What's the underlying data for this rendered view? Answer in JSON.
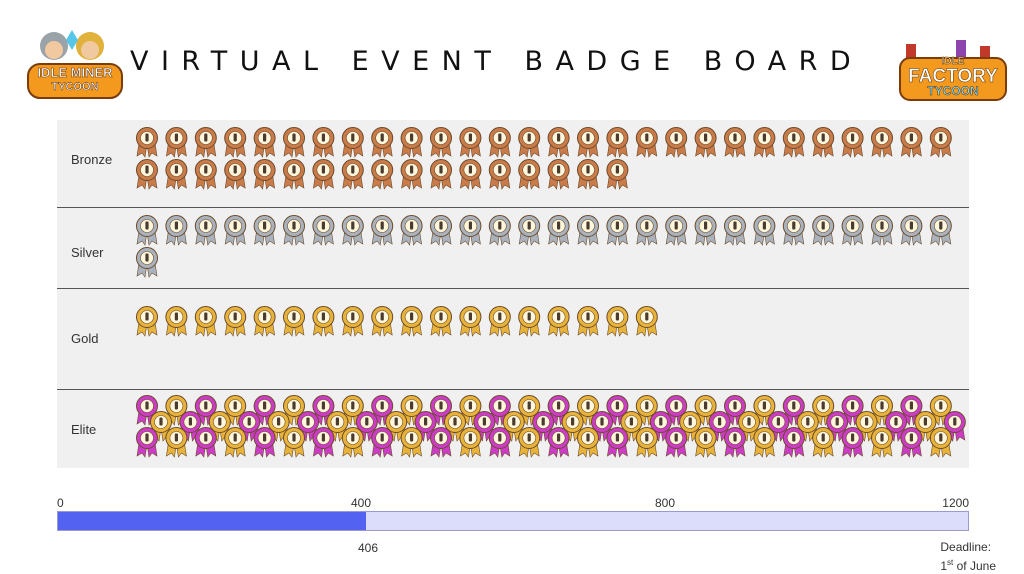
{
  "title": "VIRTUAL EVENT BADGE BOARD",
  "logos": {
    "left": {
      "name": "idle-miner-tycoon-logo",
      "lines": [
        "IDLE MINER",
        "TYCOON"
      ]
    },
    "right": {
      "name": "idle-factory-tycoon-logo",
      "lines": [
        "IDLE",
        "FACTORY",
        "TYCOON"
      ]
    }
  },
  "rows": [
    {
      "label": "Bronze",
      "count": 45,
      "colors": [
        "#c97b4a"
      ]
    },
    {
      "label": "Silver",
      "count": 29,
      "colors": [
        "#aab3bd"
      ]
    },
    {
      "label": "Gold",
      "count": 18,
      "colors": [
        "#e8b33a"
      ]
    },
    {
      "label": "Elite",
      "count": 84,
      "colors": [
        "#cc3cc7",
        "#e8b33a"
      ]
    }
  ],
  "progress": {
    "value": 406,
    "value_label": "406",
    "max": 1200,
    "ticks": [
      "0",
      "400",
      "800",
      "1200"
    ],
    "deadline_label": "Deadline:",
    "deadline_day": "1",
    "deadline_suffix": "st",
    "deadline_month": "of June",
    "fill_color": "#5462f2",
    "track_color": "#dcdcfb"
  }
}
